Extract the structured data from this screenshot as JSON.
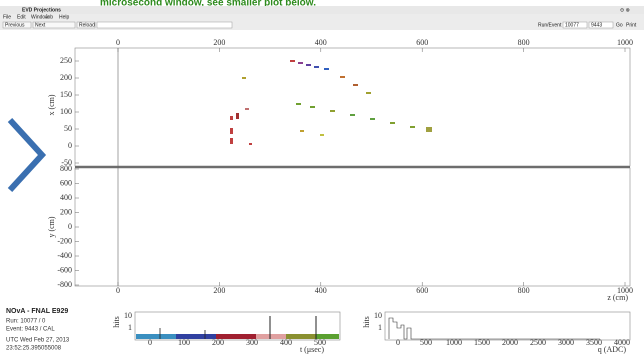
{
  "banner": "microsecond window, see smaller plot below.",
  "window_title": "EVD Projections",
  "menu": [
    "File",
    "Edit",
    "Window",
    "Job",
    "Help"
  ],
  "toolbar": {
    "previous": "Previous",
    "next": "Next",
    "reload": "Reload",
    "run_event": "Run/Event",
    "run": "10077",
    "event": "9443",
    "go": "Go",
    "print": "Print"
  },
  "xz_view": {
    "z_ticks": [
      0,
      200,
      400,
      600,
      800,
      1000
    ],
    "y_label": "x (cm)",
    "y_ticks": [
      250,
      200,
      150,
      100,
      50,
      0,
      -50
    ]
  },
  "yz_view": {
    "y_label": "y (cm)",
    "y_ticks": [
      800,
      600,
      400,
      200,
      0,
      -200,
      -400,
      -600,
      -800
    ],
    "z_ticks": [
      0,
      200,
      400,
      600,
      800,
      1000
    ],
    "z_label": "z (cm)"
  },
  "info": {
    "title": "NOvA - FNAL E929",
    "run": "Run: 10077 / 0",
    "event": "Event: 9443 / CAL",
    "date": "UTC Wed Feb 27, 2013",
    "time": "23:52:25.395055008"
  },
  "timing": {
    "y_label": "hits",
    "y_ticks": [
      10,
      1
    ],
    "x_ticks": [
      0,
      100,
      200,
      300,
      400,
      500
    ],
    "x_label": "t (μsec)"
  },
  "charge": {
    "y_label": "hits",
    "y_ticks": [
      10,
      1
    ],
    "x_ticks": [
      0,
      500,
      1000,
      1500,
      2000,
      2500,
      3000,
      3500,
      4000
    ],
    "x_label": "q (ADC)"
  }
}
